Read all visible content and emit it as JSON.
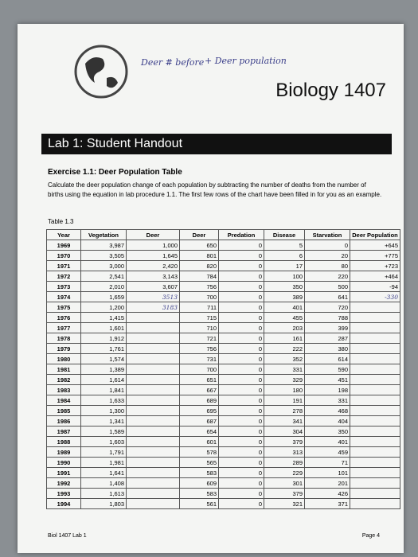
{
  "header": {
    "handwritten_note_1": "Deer # before",
    "handwritten_note_2": "+ Deer population",
    "title": "Biology 1407"
  },
  "banner": "Lab 1: Student Handout",
  "exercise": {
    "title": "Exercise 1.1: Deer Population Table",
    "instructions": "Calculate the deer population change of each population by subtracting the number of deaths from the number of births using the equation in lab procedure 1.1. The first few rows of the chart have been filled in for you as an example."
  },
  "table": {
    "caption": "Table 1.3",
    "headers": [
      "Year",
      "Vegetation",
      "Deer",
      "Deer",
      "Predation",
      "Disease",
      "Starvation",
      "Deer Population"
    ],
    "rows": [
      [
        "1969",
        "3,987",
        "1,000",
        "650",
        "0",
        "5",
        "0",
        "+645"
      ],
      [
        "1970",
        "3,505",
        "1,645",
        "801",
        "0",
        "6",
        "20",
        "+775"
      ],
      [
        "1971",
        "3,000",
        "2,420",
        "820",
        "0",
        "17",
        "80",
        "+723"
      ],
      [
        "1972",
        "2,541",
        "3,143",
        "784",
        "0",
        "100",
        "220",
        "+464"
      ],
      [
        "1973",
        "2,010",
        "3,607",
        "756",
        "0",
        "350",
        "500",
        "-94"
      ],
      [
        "1974",
        "1,659",
        "3513",
        "700",
        "0",
        "389",
        "641",
        "-330"
      ],
      [
        "1975",
        "1,200",
        "3183",
        "711",
        "0",
        "401",
        "720",
        null
      ],
      [
        "1976",
        "1,415",
        null,
        "715",
        "0",
        "455",
        "788",
        null
      ],
      [
        "1977",
        "1,601",
        null,
        "710",
        "0",
        "203",
        "399",
        null
      ],
      [
        "1978",
        "1,912",
        null,
        "721",
        "0",
        "161",
        "287",
        null
      ],
      [
        "1979",
        "1,761",
        null,
        "756",
        "0",
        "222",
        "380",
        null
      ],
      [
        "1980",
        "1,574",
        null,
        "731",
        "0",
        "352",
        "614",
        null
      ],
      [
        "1981",
        "1,389",
        null,
        "700",
        "0",
        "331",
        "590",
        null
      ],
      [
        "1982",
        "1,614",
        null,
        "651",
        "0",
        "329",
        "451",
        null
      ],
      [
        "1983",
        "1,841",
        null,
        "667",
        "0",
        "180",
        "198",
        null
      ],
      [
        "1984",
        "1,633",
        null,
        "689",
        "0",
        "191",
        "331",
        null
      ],
      [
        "1985",
        "1,300",
        null,
        "695",
        "0",
        "278",
        "468",
        null
      ],
      [
        "1986",
        "1,341",
        null,
        "687",
        "0",
        "341",
        "404",
        null
      ],
      [
        "1987",
        "1,589",
        null,
        "654",
        "0",
        "304",
        "350",
        null
      ],
      [
        "1988",
        "1,603",
        null,
        "601",
        "0",
        "379",
        "401",
        null
      ],
      [
        "1989",
        "1,791",
        null,
        "578",
        "0",
        "313",
        "459",
        null
      ],
      [
        "1990",
        "1,981",
        null,
        "565",
        "0",
        "289",
        "71",
        null
      ],
      [
        "1991",
        "1,641",
        null,
        "583",
        "0",
        "229",
        "101",
        null
      ],
      [
        "1992",
        "1,408",
        null,
        "609",
        "0",
        "301",
        "201",
        null
      ],
      [
        "1993",
        "1,613",
        null,
        "583",
        "0",
        "379",
        "426",
        null
      ],
      [
        "1994",
        "1,803",
        null,
        "561",
        "0",
        "321",
        "371",
        null
      ]
    ]
  },
  "footer": {
    "left": "Biol 1407 Lab 1",
    "right": "Page 4"
  }
}
